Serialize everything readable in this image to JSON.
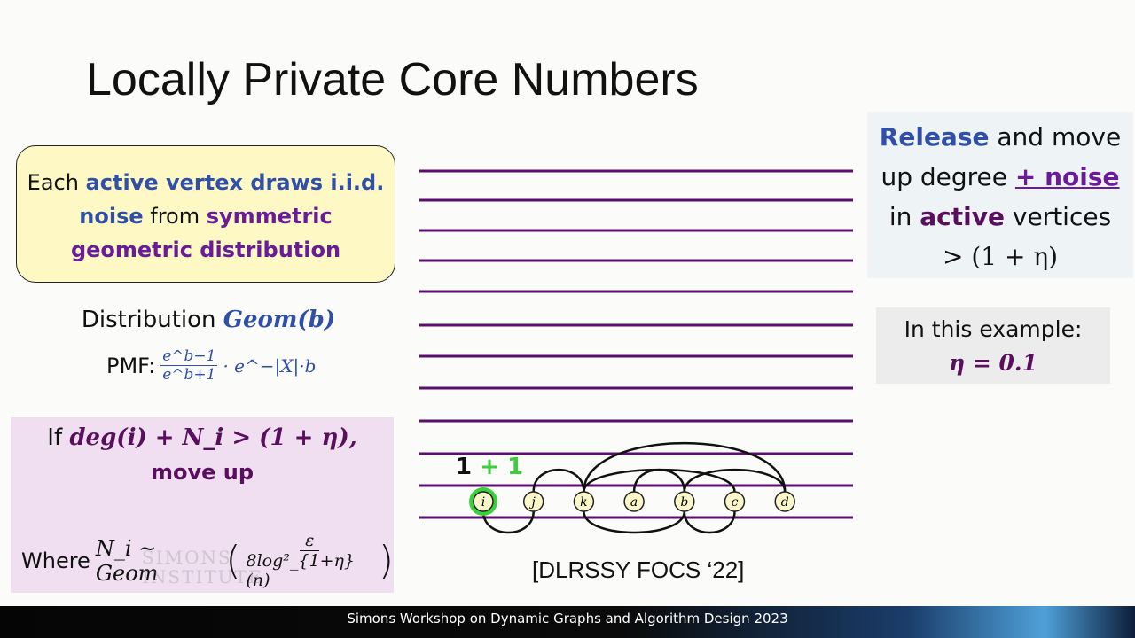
{
  "slide": {
    "title": "Locally Private Core Numbers",
    "box1": {
      "t1": "Each ",
      "t2": "active vertex draws i.i.d.",
      "t3": "noise",
      "t4": " from ",
      "t5": "symmetric",
      "t6": "geometric distribution"
    },
    "distribution": {
      "label": "Distribution ",
      "name": "Geom(b)",
      "pmf_label": "PMF:",
      "num": "e^b−1",
      "den": "e^b+1",
      "tail": "· e^−|X|·b"
    },
    "box2": {
      "if": "If ",
      "cond": "deg(i) + N_i > (1 + η),",
      "move": "move up",
      "where": "Where ",
      "rel": "N_i ~ Geom",
      "num": "ε",
      "den": "8log²_{1+η}(n)"
    },
    "watermark": {
      "l1": "SIMONS",
      "l2": "INSTITUTE"
    },
    "right1": {
      "release": "Release",
      "t1": " and move",
      "t2": "up degree ",
      "noise": "+ noise",
      "t3": "in ",
      "active": "active",
      "t4": " vertices",
      "t5": "> (1 + η)"
    },
    "right2": {
      "l1": "In this example:",
      "l2": "η = 0.1"
    },
    "graph": {
      "degree_label": "1",
      "noise_label": "+ 1",
      "nodes": [
        "i",
        "j",
        "k",
        "a",
        "b",
        "c",
        "d"
      ],
      "highlighted_node": "i",
      "edges": [
        [
          "i",
          "j"
        ],
        [
          "j",
          "k"
        ],
        [
          "k",
          "d"
        ],
        [
          "k",
          "c"
        ],
        [
          "a",
          "b"
        ],
        [
          "b",
          "d"
        ],
        [
          "k",
          "b"
        ],
        [
          "b",
          "c"
        ]
      ],
      "colors": {
        "levels": "#5a0f6e",
        "node": "#fbf7c8",
        "highlight": "#3ccf3c"
      }
    },
    "citation": "[DLRSSY FOCS ‘22]",
    "footer": "Simons Workshop on Dynamic Graphs and Algorithm Design 2023"
  }
}
